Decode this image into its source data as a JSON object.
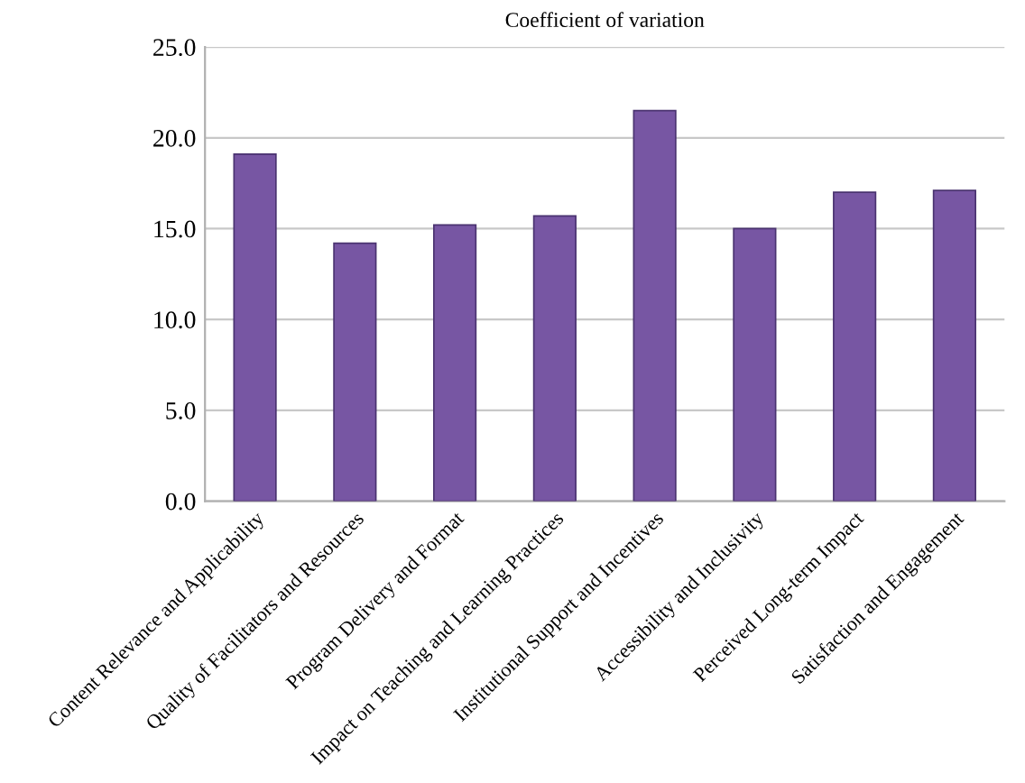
{
  "chart_data": {
    "type": "bar",
    "title": "Coefficient of variation",
    "categories": [
      "Content Relevance and Applicability",
      "Quality of Facilitators and Resources",
      "Program Delivery and Format",
      "Impact on Teaching and Learning Practices",
      "Institutional Support and Incentives",
      "Accessibility and Inclusivity",
      "Perceived Long-term Impact",
      "Satisfaction and Engagement"
    ],
    "values": [
      19.1,
      14.2,
      15.2,
      15.7,
      21.5,
      15.0,
      17.0,
      17.1
    ],
    "color": "#7756a3",
    "ylim": [
      0,
      25
    ],
    "yticks": [
      {
        "value": 0,
        "label": "0.0"
      },
      {
        "value": 5,
        "label": "5.0"
      },
      {
        "value": 10,
        "label": "10.0"
      },
      {
        "value": 15,
        "label": "15.0"
      },
      {
        "value": 20,
        "label": "20.0"
      },
      {
        "value": 25,
        "label": "25.0"
      }
    ],
    "grid": "y"
  }
}
